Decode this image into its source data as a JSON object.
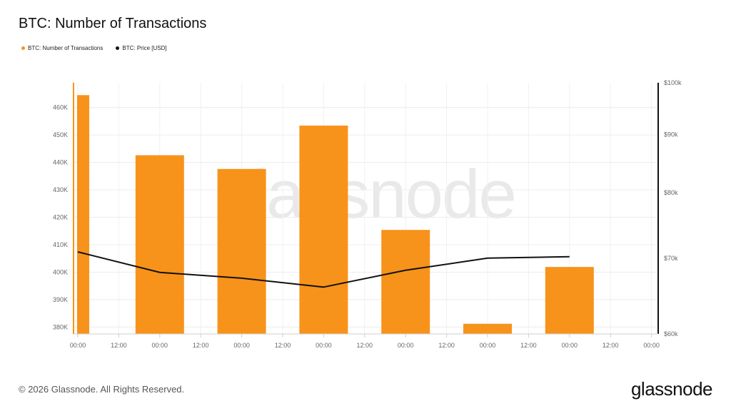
{
  "title": "BTC: Number of Transactions",
  "legend": [
    {
      "label": "BTC: Number of Transactions",
      "color": "#f7931a"
    },
    {
      "label": "BTC: Price [USD]",
      "color": "#111111"
    }
  ],
  "watermark": "glassnode",
  "footer": "© 2026 Glassnode. All Rights Reserved.",
  "brand": "glassnode",
  "chart_data": {
    "type": "bar",
    "categories": [
      "00:00",
      "00:00",
      "00:00",
      "00:00",
      "00:00",
      "00:00",
      "00:00"
    ],
    "x_tick_labels": [
      "00:00",
      "12:00",
      "00:00",
      "12:00",
      "00:00",
      "12:00",
      "00:00",
      "12:00",
      "00:00",
      "12:00",
      "00:00",
      "12:00",
      "00:00",
      "12:00",
      "00:00"
    ],
    "series": [
      {
        "name": "BTC: Number of Transactions",
        "type": "bar",
        "axis": "left",
        "color": "#f7931a",
        "values": [
          464500,
          442600,
          437600,
          453400,
          415400,
          381200,
          401900
        ]
      },
      {
        "name": "BTC: Price [USD]",
        "type": "line",
        "axis": "right",
        "color": "#111111",
        "values": [
          70900,
          68000,
          67200,
          66000,
          68300,
          70000,
          70200
        ]
      }
    ],
    "y_left": {
      "min": 377500,
      "max": 469000,
      "ticks": [
        380000,
        390000,
        400000,
        410000,
        420000,
        430000,
        440000,
        450000,
        460000
      ],
      "tick_labels": [
        "380K",
        "390K",
        "400K",
        "410K",
        "420K",
        "430K",
        "440K",
        "450K",
        "460K"
      ],
      "scale": "linear"
    },
    "y_right": {
      "min": 60000,
      "max": 100000,
      "ticks": [
        60000,
        70000,
        80000,
        90000,
        100000
      ],
      "tick_labels": [
        "$60k",
        "$70k",
        "$80k",
        "$90k",
        "$100k"
      ],
      "scale": "log"
    },
    "grid": true,
    "legend_position": "top-left"
  }
}
